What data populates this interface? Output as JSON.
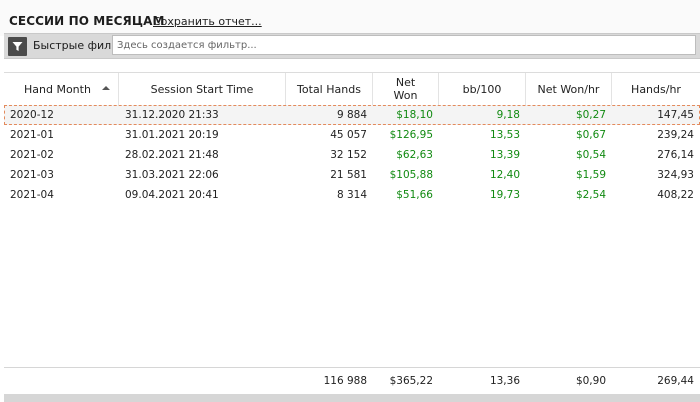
{
  "header": {
    "title": "СЕССИИ ПО МЕСЯЦАМ",
    "save_link": "Сохранить отчет..."
  },
  "filter": {
    "icon": "funnel-icon",
    "quick_label": "Быстрые фильт",
    "placeholder": "Здесь создается фильтр..."
  },
  "table": {
    "columns": [
      "Hand Month",
      "Session Start Time",
      "Total Hands",
      "Net\nWon",
      "bb/100",
      "Net Won/hr",
      "Hands/hr"
    ],
    "sort": {
      "column": "Hand Month",
      "direction": "ascending"
    },
    "rows": [
      {
        "hand_month": "2020-12",
        "session_start": "31.12.2020 21:33",
        "total_hands": "9 884",
        "net_won": "$18,10",
        "bb100": "9,18",
        "net_won_hr": "$0,27",
        "hands_hr": "147,45"
      },
      {
        "hand_month": "2021-01",
        "session_start": "31.01.2021 20:19",
        "total_hands": "45 057",
        "net_won": "$126,95",
        "bb100": "13,53",
        "net_won_hr": "$0,67",
        "hands_hr": "239,24"
      },
      {
        "hand_month": "2021-02",
        "session_start": "28.02.2021 21:48",
        "total_hands": "32 152",
        "net_won": "$62,63",
        "bb100": "13,39",
        "net_won_hr": "$0,54",
        "hands_hr": "276,14"
      },
      {
        "hand_month": "2021-03",
        "session_start": "31.03.2021 22:06",
        "total_hands": "21 581",
        "net_won": "$105,88",
        "bb100": "12,40",
        "net_won_hr": "$1,59",
        "hands_hr": "324,93"
      },
      {
        "hand_month": "2021-04",
        "session_start": "09.04.2021 20:41",
        "total_hands": "8 314",
        "net_won": "$51,66",
        "bb100": "19,73",
        "net_won_hr": "$2,54",
        "hands_hr": "408,22"
      }
    ],
    "totals": {
      "total_hands": "116 988",
      "net_won": "$365,22",
      "bb100": "13,36",
      "net_won_hr": "$0,90",
      "hands_hr": "269,44"
    },
    "colors": {
      "positive": "#118a11",
      "selection_border": "#e38a5c"
    }
  }
}
